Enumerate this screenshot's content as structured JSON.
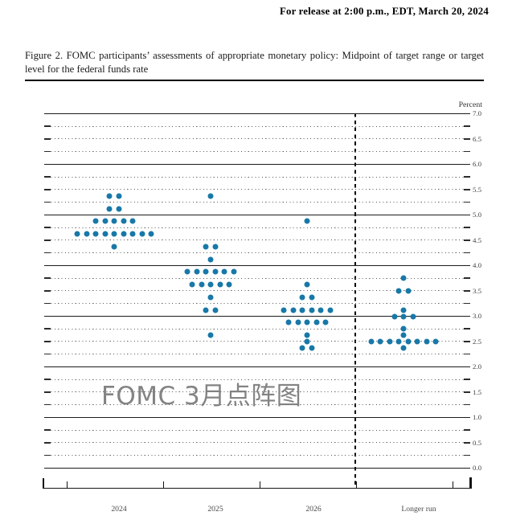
{
  "header": {
    "release_line": "For release at 2:00 p.m., EDT, March 20, 2024"
  },
  "figure": {
    "caption": "Figure 2.  FOMC participants’ assessments of appropriate monetary policy:  Midpoint of target range or target level for the federal funds rate"
  },
  "watermark": {
    "text": "FOMC 3月点阵图",
    "color": "#7a7a7a"
  },
  "chart_data": {
    "type": "scatter",
    "variant": "fomc-dot-plot",
    "title": "Midpoint of target range or target level for the federal funds rate",
    "dot_color": "#1878a8",
    "y_axis": {
      "label": "Percent",
      "min": 0.0,
      "max": 7.0,
      "tick_step": 0.5,
      "grid_step": 0.25,
      "solid_gridlines_at_integers": true,
      "tick_labels": [
        "7.0",
        "6.5",
        "6.0",
        "5.5",
        "5.0",
        "4.5",
        "4.0",
        "3.5",
        "3.0",
        "2.5",
        "2.0",
        "1.5",
        "1.0",
        "0.5",
        "0.0"
      ]
    },
    "categories": [
      "2024",
      "2025",
      "2026",
      "Longer run"
    ],
    "separator": {
      "style": "dashed-vertical-line",
      "between": [
        "2026",
        "Longer run"
      ]
    },
    "columns": [
      {
        "category": "2024",
        "dots": [
          {
            "rate": 5.375,
            "count": 2
          },
          {
            "rate": 5.125,
            "count": 2
          },
          {
            "rate": 4.875,
            "count": 5
          },
          {
            "rate": 4.625,
            "count": 9
          },
          {
            "rate": 4.375,
            "count": 1
          }
        ]
      },
      {
        "category": "2025",
        "dots": [
          {
            "rate": 5.375,
            "count": 1
          },
          {
            "rate": 4.375,
            "count": 2
          },
          {
            "rate": 4.125,
            "count": 1
          },
          {
            "rate": 3.875,
            "count": 6
          },
          {
            "rate": 3.625,
            "count": 5
          },
          {
            "rate": 3.375,
            "count": 1
          },
          {
            "rate": 3.125,
            "count": 2
          },
          {
            "rate": 2.625,
            "count": 1
          }
        ]
      },
      {
        "category": "2026",
        "dots": [
          {
            "rate": 4.875,
            "count": 1
          },
          {
            "rate": 3.625,
            "count": 1
          },
          {
            "rate": 3.375,
            "count": 2
          },
          {
            "rate": 3.125,
            "count": 6
          },
          {
            "rate": 2.875,
            "count": 5
          },
          {
            "rate": 2.625,
            "count": 1
          },
          {
            "rate": 2.5,
            "count": 1
          },
          {
            "rate": 2.375,
            "count": 2
          }
        ]
      },
      {
        "category": "Longer run",
        "dots": [
          {
            "rate": 3.75,
            "count": 1
          },
          {
            "rate": 3.5,
            "count": 2
          },
          {
            "rate": 3.125,
            "count": 1
          },
          {
            "rate": 3.0,
            "count": 3
          },
          {
            "rate": 2.75,
            "count": 1
          },
          {
            "rate": 2.625,
            "count": 1
          },
          {
            "rate": 2.5,
            "count": 8
          },
          {
            "rate": 2.375,
            "count": 1
          }
        ]
      }
    ]
  }
}
